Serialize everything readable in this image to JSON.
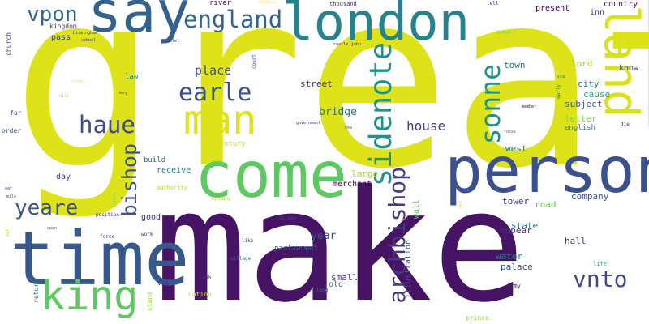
{
  "words": [
    {
      "text": "great",
      "color": "#dde318"
    },
    {
      "text": "make",
      "color": "#471365"
    },
    {
      "text": "person",
      "color": "#3b518b"
    },
    {
      "text": "time",
      "color": "#38588c"
    },
    {
      "text": "come",
      "color": "#5ec962"
    },
    {
      "text": "say",
      "color": "#33638d"
    },
    {
      "text": "london",
      "color": "#25838e"
    },
    {
      "text": "land",
      "color": "#d8e219"
    },
    {
      "text": "man",
      "color": "#dde318"
    },
    {
      "text": "king",
      "color": "#5ec962"
    },
    {
      "text": "england",
      "color": "#33638d"
    },
    {
      "text": "vpon",
      "color": "#33638d"
    },
    {
      "text": "earle",
      "color": "#3b528b"
    },
    {
      "text": "sidenote",
      "color": "#21918c"
    },
    {
      "text": "sonne",
      "color": "#21918c"
    },
    {
      "text": "haue",
      "color": "#3e4a89"
    },
    {
      "text": "archbishop",
      "color": "#443a83"
    },
    {
      "text": "bishop",
      "color": "#3b528b"
    },
    {
      "text": "yeare",
      "color": "#3b528b"
    },
    {
      "text": "vnto",
      "color": "#3e4989"
    },
    {
      "text": "house",
      "color": "#424086"
    },
    {
      "text": "place",
      "color": "#3b528b"
    },
    {
      "text": "year",
      "color": "#3b528b"
    },
    {
      "text": "bridge",
      "color": "#2c728e"
    },
    {
      "text": "street",
      "color": "#482878"
    },
    {
      "text": "illustration",
      "color": "#3b528b"
    },
    {
      "text": "lord",
      "color": "#90d743"
    },
    {
      "text": "town",
      "color": "#2c728e"
    },
    {
      "text": "city",
      "color": "#287d8e"
    },
    {
      "text": "cause",
      "color": "#22a884"
    },
    {
      "text": "subject",
      "color": "#3b528b"
    },
    {
      "text": "letter",
      "color": "#7ad151"
    },
    {
      "text": "english",
      "color": "#25848e"
    },
    {
      "text": "present",
      "color": "#440154"
    },
    {
      "text": "inn",
      "color": "#443a83"
    },
    {
      "text": "country",
      "color": "#481668"
    },
    {
      "text": "know",
      "color": "#3b528b"
    },
    {
      "text": "west",
      "color": "#2c728e"
    },
    {
      "text": "road",
      "color": "#5ec962"
    },
    {
      "text": "company",
      "color": "#3b528b"
    },
    {
      "text": "tower",
      "color": "#46327e"
    },
    {
      "text": "state",
      "color": "#2a788e"
    },
    {
      "text": "appear",
      "color": "#472d7b"
    },
    {
      "text": "hall",
      "color": "#443983"
    },
    {
      "text": "water",
      "color": "#287d8e"
    },
    {
      "text": "palace",
      "color": "#3b528b"
    },
    {
      "text": "small",
      "color": "#472f7d"
    },
    {
      "text": "old",
      "color": "#31688e"
    },
    {
      "text": "parliament",
      "color": "#3b528b"
    },
    {
      "text": "merchant",
      "color": "#440154"
    },
    {
      "text": "large",
      "color": "#a2da37"
    },
    {
      "text": "wall",
      "color": "#5ec962"
    },
    {
      "text": "century",
      "color": "#cae11f"
    },
    {
      "text": "build",
      "color": "#31688e"
    },
    {
      "text": "receive",
      "color": "#2a788e"
    },
    {
      "text": "day",
      "color": "#404688"
    },
    {
      "text": "good",
      "color": "#472c7a"
    },
    {
      "text": "law",
      "color": "#23898e"
    },
    {
      "text": "river",
      "color": "#440154"
    },
    {
      "text": "pass",
      "color": "#404688"
    },
    {
      "text": "kingdom",
      "color": "#443983"
    },
    {
      "text": "church",
      "color": "#443983"
    },
    {
      "text": "far",
      "color": "#3b528b"
    },
    {
      "text": "order",
      "color": "#39558c"
    },
    {
      "text": "thousand",
      "color": "#482475"
    },
    {
      "text": "power",
      "color": "#95d840"
    },
    {
      "text": "return",
      "color": "#31688e"
    },
    {
      "text": "stand",
      "color": "#95d840"
    },
    {
      "text": "nation",
      "color": "#cae11f"
    },
    {
      "text": "vol",
      "color": "#482878"
    },
    {
      "text": "work",
      "color": "#482878"
    },
    {
      "text": "authority",
      "color": "#b5de2b"
    },
    {
      "text": "army",
      "color": "#482475"
    },
    {
      "text": "prince",
      "color": "#8fd744"
    },
    {
      "text": "life",
      "color": "#25ab82"
    },
    {
      "text": "like",
      "color": "#3e4989"
    },
    {
      "text": "court",
      "color": "#3b528b"
    },
    {
      "text": "railway",
      "color": "#3e4989"
    },
    {
      "text": "early",
      "color": "#25848e"
    },
    {
      "text": "use",
      "color": "#2a788e"
    },
    {
      "text": "die",
      "color": "#481d6f"
    },
    {
      "text": "member",
      "color": "#440154"
    },
    {
      "text": "france",
      "color": "#440154"
    },
    {
      "text": "position",
      "color": "#482878"
    },
    {
      "text": "force",
      "color": "#482475"
    },
    {
      "text": "village",
      "color": "#2c728e"
    },
    {
      "text": "long",
      "color": "#2a788e"
    },
    {
      "text": "look",
      "color": "#482878"
    },
    {
      "text": "open",
      "color": "#3e4989"
    },
    {
      "text": "mile",
      "color": "#3b528b"
    },
    {
      "text": "way",
      "color": "#3b528b"
    },
    {
      "text": "earl",
      "color": "#bddf26"
    },
    {
      "text": "little",
      "color": "#7ad151"
    },
    {
      "text": "act",
      "color": "#b5de2b"
    },
    {
      "text": "building",
      "color": "#a0da39"
    },
    {
      "text": "government",
      "color": "#482878"
    },
    {
      "text": "new",
      "color": "#2c728e"
    },
    {
      "text": "castle",
      "color": "#440154"
    },
    {
      "text": "john",
      "color": "#482878"
    },
    {
      "text": "hotel",
      "color": "#482878"
    },
    {
      "text": "school",
      "color": "#3e4989"
    },
    {
      "text": "birmingham",
      "color": "#3e4989"
    },
    {
      "text": "tell",
      "color": "#482878"
    },
    {
      "text": "station",
      "color": "#fde725"
    },
    {
      "text": "trade",
      "color": "#fde725"
    },
    {
      "text": "hill",
      "color": "#b5de2b"
    },
    {
      "text": "bury",
      "color": "#482878"
    }
  ]
}
